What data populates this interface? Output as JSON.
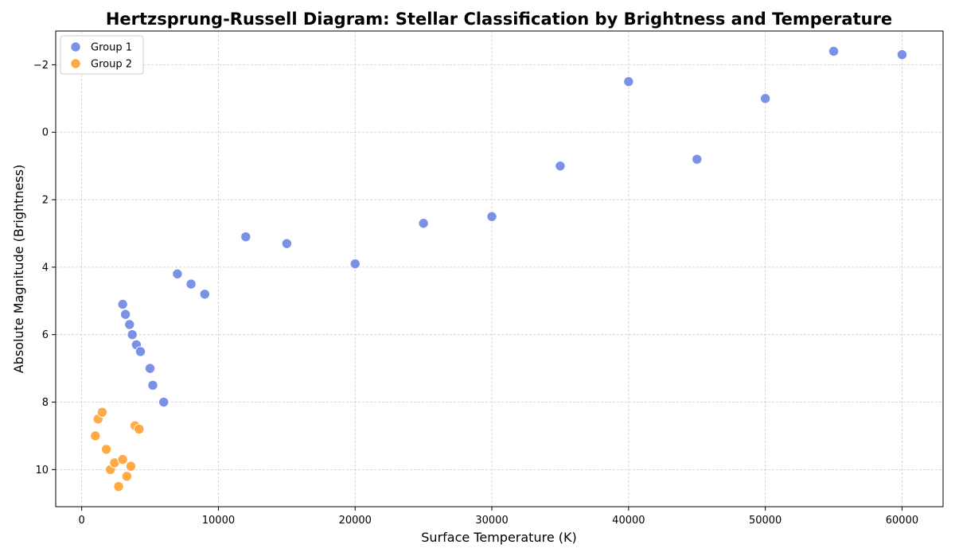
{
  "chart_data": {
    "type": "scatter",
    "title": "Hertzsprung-Russell Diagram: Stellar Classification by Brightness and Temperature",
    "xlabel": "Surface Temperature (K)",
    "ylabel": "Absolute Magnitude (Brightness)",
    "xlim": [
      -1900,
      63000
    ],
    "ylim": [
      11.1,
      -3.0
    ],
    "y_inverted": true,
    "xticks": [
      0,
      10000,
      20000,
      30000,
      40000,
      50000,
      60000
    ],
    "xtick_labels": [
      "0",
      "10000",
      "20000",
      "30000",
      "40000",
      "50000",
      "60000"
    ],
    "yticks": [
      -2,
      0,
      2,
      4,
      6,
      8,
      10
    ],
    "ytick_labels": [
      "−2",
      "0",
      "2",
      "4",
      "6",
      "8",
      "10"
    ],
    "grid": true,
    "legend_position": "top-left",
    "series": [
      {
        "name": "Group 1",
        "color": "#6b86e3",
        "points": [
          {
            "x": 3000,
            "y": 5.1
          },
          {
            "x": 3200,
            "y": 5.4
          },
          {
            "x": 3500,
            "y": 5.7
          },
          {
            "x": 3700,
            "y": 6.0
          },
          {
            "x": 4000,
            "y": 6.3
          },
          {
            "x": 4300,
            "y": 6.5
          },
          {
            "x": 5000,
            "y": 7.0
          },
          {
            "x": 5200,
            "y": 7.5
          },
          {
            "x": 6000,
            "y": 8.0
          },
          {
            "x": 7000,
            "y": 4.2
          },
          {
            "x": 8000,
            "y": 4.5
          },
          {
            "x": 9000,
            "y": 4.8
          },
          {
            "x": 12000,
            "y": 3.1
          },
          {
            "x": 15000,
            "y": 3.3
          },
          {
            "x": 20000,
            "y": 3.9
          },
          {
            "x": 25000,
            "y": 2.7
          },
          {
            "x": 30000,
            "y": 2.5
          },
          {
            "x": 35000,
            "y": 1.0
          },
          {
            "x": 40000,
            "y": -1.5
          },
          {
            "x": 45000,
            "y": 0.8
          },
          {
            "x": 50000,
            "y": -1.0
          },
          {
            "x": 55000,
            "y": -2.4
          },
          {
            "x": 60000,
            "y": -2.3
          }
        ]
      },
      {
        "name": "Group 2",
        "color": "#ffa133",
        "points": [
          {
            "x": 1000,
            "y": 9.0
          },
          {
            "x": 1200,
            "y": 8.5
          },
          {
            "x": 1500,
            "y": 8.3
          },
          {
            "x": 1800,
            "y": 9.4
          },
          {
            "x": 2100,
            "y": 10.0
          },
          {
            "x": 2400,
            "y": 9.8
          },
          {
            "x": 2700,
            "y": 10.5
          },
          {
            "x": 3000,
            "y": 9.7
          },
          {
            "x": 3300,
            "y": 10.2
          },
          {
            "x": 3600,
            "y": 9.9
          },
          {
            "x": 3900,
            "y": 8.7
          },
          {
            "x": 4200,
            "y": 8.8
          }
        ]
      }
    ]
  }
}
